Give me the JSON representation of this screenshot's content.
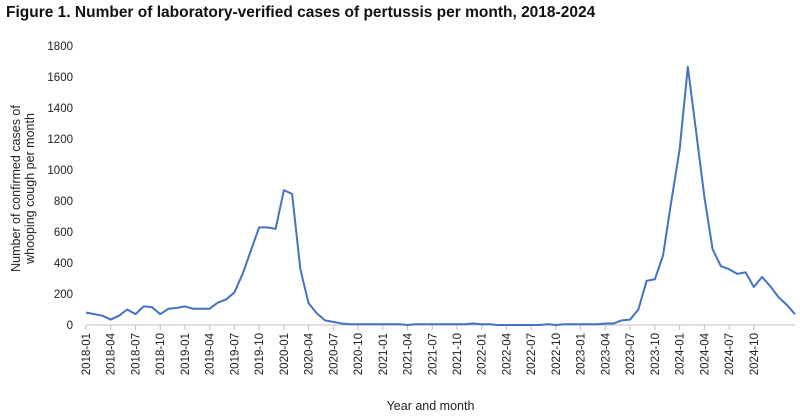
{
  "chart_data": {
    "type": "line",
    "title": "Figure 1. Number of laboratory-verified cases  of pertussis  per month, 2018-2024",
    "xlabel": "Year and month",
    "ylabel_lines": [
      "Number of confirmed  cases of",
      "whooping cough per month"
    ],
    "ylim": [
      0,
      1800
    ],
    "yticks": [
      0,
      200,
      400,
      600,
      800,
      1000,
      1200,
      1400,
      1600,
      1800
    ],
    "grid": false,
    "legend": "none",
    "line_color": "#4472C4",
    "x_tick_labels": [
      "2018-01",
      "2018-04",
      "2018-07",
      "2018-10",
      "2019-01",
      "2019-04",
      "2019-07",
      "2019-10",
      "2020-01",
      "2020-04",
      "2020-07",
      "2020-10",
      "2021-01",
      "2021-04",
      "2021-07",
      "2021-10",
      "2022-01",
      "2022-04",
      "2022-07",
      "2022-10",
      "2023-01",
      "2023-04",
      "2023-07",
      "2023-10",
      "2024-01",
      "2024-04",
      "2024-07",
      "2024-10"
    ],
    "series": [
      {
        "values": [
          80,
          70,
          60,
          35,
          60,
          100,
          70,
          120,
          115,
          70,
          105,
          110,
          120,
          105,
          105,
          105,
          145,
          165,
          210,
          330,
          480,
          630,
          630,
          620,
          870,
          845,
          360,
          140,
          75,
          30,
          20,
          10,
          5,
          5,
          5,
          5,
          5,
          5,
          5,
          0,
          5,
          5,
          5,
          5,
          5,
          5,
          5,
          10,
          5,
          5,
          0,
          0,
          0,
          0,
          0,
          0,
          5,
          0,
          5,
          5,
          5,
          5,
          5,
          10,
          10,
          30,
          35,
          100,
          285,
          295,
          450,
          800,
          1130,
          1665,
          1250,
          830,
          490,
          380,
          360,
          330,
          340,
          245,
          310,
          250,
          180,
          130,
          70
        ]
      }
    ]
  }
}
